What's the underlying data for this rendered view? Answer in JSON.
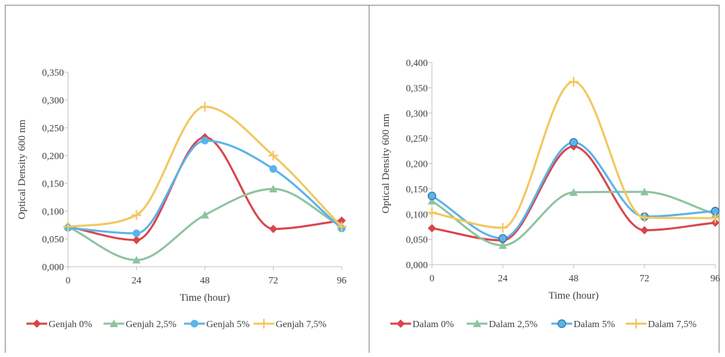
{
  "chart_data": [
    {
      "type": "line",
      "title": "",
      "xlabel": "Time (hour)",
      "ylabel": "Optical Density 600 nm",
      "x": [
        0,
        24,
        48,
        72,
        96
      ],
      "xticks": [
        "0",
        "24",
        "48",
        "72",
        "96"
      ],
      "ylim": [
        0,
        0.35
      ],
      "yticks": [
        "0,000",
        "0,050",
        "0,100",
        "0,150",
        "0,200",
        "0,250",
        "0,300",
        "0,350"
      ],
      "grid": false,
      "legend_position": "bottom",
      "smooth": true,
      "series": [
        {
          "name": "Genjah 0%",
          "color": "#d9454a",
          "marker": "diamond",
          "values": [
            0.072,
            0.048,
            0.233,
            0.068,
            0.083
          ]
        },
        {
          "name": "Genjah 2,5%",
          "color": "#8ec39f",
          "marker": "triangle",
          "values": [
            0.072,
            0.012,
            0.093,
            0.14,
            0.072
          ]
        },
        {
          "name": "Genjah 5%",
          "color": "#5bb3ea",
          "marker": "circle",
          "values": [
            0.07,
            0.06,
            0.227,
            0.176,
            0.069
          ]
        },
        {
          "name": "Genjah 7,5%",
          "color": "#f2c75f",
          "marker": "plus",
          "values": [
            0.072,
            0.093,
            0.288,
            0.2,
            0.072
          ]
        }
      ]
    },
    {
      "type": "line",
      "title": "",
      "xlabel": "Time (hour)",
      "ylabel": "Optical Density 600 nm",
      "x": [
        0,
        24,
        48,
        72,
        96
      ],
      "xticks": [
        "0",
        "24",
        "48",
        "72",
        "96"
      ],
      "ylim": [
        0,
        0.4
      ],
      "yticks": [
        "0,000",
        "0,050",
        "0,100",
        "0,150",
        "0,200",
        "0,250",
        "0,300",
        "0,350",
        "0,400"
      ],
      "grid": false,
      "legend_position": "bottom",
      "smooth": true,
      "series": [
        {
          "name": "Dalam 0%",
          "color": "#d9454a",
          "marker": "diamond",
          "values": [
            0.072,
            0.048,
            0.234,
            0.068,
            0.083
          ]
        },
        {
          "name": "Dalam 2,5%",
          "color": "#8ec39f",
          "marker": "triangle",
          "values": [
            0.126,
            0.038,
            0.143,
            0.144,
            0.1
          ]
        },
        {
          "name": "Dalam 5%",
          "color": "#5bb3ea",
          "marker": "circle-outlined",
          "values": [
            0.136,
            0.052,
            0.242,
            0.095,
            0.106
          ]
        },
        {
          "name": "Dalam 7,5%",
          "color": "#f2c75f",
          "marker": "plus",
          "values": [
            0.103,
            0.073,
            0.362,
            0.093,
            0.092
          ]
        }
      ]
    }
  ]
}
